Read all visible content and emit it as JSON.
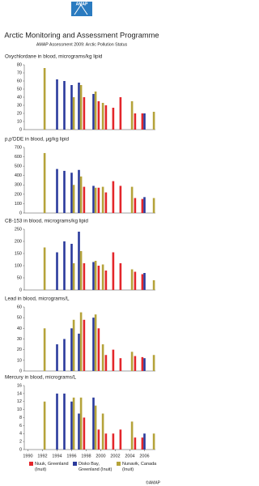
{
  "header": {
    "logo": "AMAP",
    "title": "Arctic Monitoring and Assessment Programme",
    "subtitle": "AMAP Assessment 2009: Arctic Pollution Status"
  },
  "chart_data": [
    {
      "type": "bar",
      "title": "Oxychlordane in blood, micrograms/kg lipid",
      "xlim": [
        1989.5,
        2007.5
      ],
      "ylim": [
        0,
        80
      ],
      "yticks": [
        0,
        10,
        20,
        30,
        40,
        50,
        60,
        70,
        80
      ],
      "series": [
        {
          "name": "Nuuk, Greenland (Inuit)",
          "color": "#e3262b",
          "x": [
            1998,
            2000,
            2001,
            2002,
            2003,
            2005,
            2006
          ],
          "values": [
            40,
            35,
            30,
            27,
            40,
            20,
            20
          ]
        },
        {
          "name": "Disko Bay, Greenland (Inuit)",
          "color": "#2a3a9c",
          "x": [
            1994,
            1995,
            1996,
            1997,
            1999,
            2006
          ],
          "values": [
            62,
            60,
            55,
            58,
            44,
            20
          ]
        },
        {
          "name": "Nunavik, Canada (Inuit)",
          "color": "#b5a33a",
          "x": [
            1992,
            1996,
            1997,
            1999,
            2000,
            2004,
            2007
          ],
          "values": [
            76,
            40,
            55,
            47,
            33,
            35,
            22
          ]
        }
      ]
    },
    {
      "type": "bar",
      "title": "p,p'DDE in blood, µg/kg lipid",
      "xlim": [
        1989.5,
        2007.5
      ],
      "ylim": [
        0,
        700
      ],
      "yticks": [
        0,
        100,
        200,
        300,
        400,
        500,
        600,
        700
      ],
      "series": [
        {
          "name": "Nuuk, Greenland (Inuit)",
          "color": "#e3262b",
          "x": [
            1998,
            2000,
            2001,
            2002,
            2003,
            2005,
            2006
          ],
          "values": [
            280,
            270,
            220,
            340,
            290,
            160,
            150
          ]
        },
        {
          "name": "Disko Bay, Greenland (Inuit)",
          "color": "#2a3a9c",
          "x": [
            1994,
            1995,
            1996,
            1997,
            1999,
            2006
          ],
          "values": [
            470,
            450,
            430,
            460,
            290,
            170
          ]
        },
        {
          "name": "Nunavik, Canada (Inuit)",
          "color": "#b5a33a",
          "x": [
            1992,
            1996,
            1997,
            1999,
            2000,
            2004,
            2007
          ],
          "values": [
            640,
            300,
            390,
            270,
            280,
            280,
            160
          ]
        }
      ]
    },
    {
      "type": "bar",
      "title": "CB-153 in blood, micrograms/kg lipid",
      "xlim": [
        1989.5,
        2007.5
      ],
      "ylim": [
        0,
        250
      ],
      "yticks": [
        0,
        50,
        100,
        150,
        200,
        250
      ],
      "series": [
        {
          "name": "Nuuk, Greenland (Inuit)",
          "color": "#e3262b",
          "x": [
            1998,
            2000,
            2001,
            2002,
            2003,
            2005,
            2006
          ],
          "values": [
            110,
            100,
            80,
            155,
            110,
            75,
            65
          ]
        },
        {
          "name": "Disko Bay, Greenland (Inuit)",
          "color": "#2a3a9c",
          "x": [
            1994,
            1995,
            1996,
            1997,
            1999,
            2006
          ],
          "values": [
            155,
            200,
            190,
            240,
            115,
            70
          ]
        },
        {
          "name": "Nunavik, Canada (Inuit)",
          "color": "#b5a33a",
          "x": [
            1992,
            1996,
            1997,
            1999,
            2000,
            2004,
            2007
          ],
          "values": [
            175,
            110,
            160,
            120,
            105,
            85,
            40
          ]
        }
      ]
    },
    {
      "type": "bar",
      "title": "Lead in blood, micrograms/L",
      "xlim": [
        1989.5,
        2007.5
      ],
      "ylim": [
        0,
        60
      ],
      "yticks": [
        0,
        10,
        20,
        30,
        40,
        50,
        60
      ],
      "series": [
        {
          "name": "Nuuk, Greenland (Inuit)",
          "color": "#e3262b",
          "x": [
            1998,
            2000,
            2001,
            2002,
            2003,
            2005,
            2006
          ],
          "values": [
            48,
            40,
            15,
            20,
            12,
            14,
            13
          ]
        },
        {
          "name": "Disko Bay, Greenland (Inuit)",
          "color": "#2a3a9c",
          "x": [
            1994,
            1995,
            1996,
            1997,
            1999,
            2006
          ],
          "values": [
            25,
            30,
            40,
            35,
            50,
            12
          ]
        },
        {
          "name": "Nunavik, Canada (Inuit)",
          "color": "#b5a33a",
          "x": [
            1992,
            1996,
            1997,
            1999,
            2000,
            2004,
            2007
          ],
          "values": [
            40,
            48,
            55,
            53,
            25,
            18,
            15
          ]
        }
      ]
    },
    {
      "type": "bar",
      "title": "Mercury in blood, micrograms/L",
      "xlim": [
        1989.5,
        2007.5
      ],
      "xticks": [
        1990,
        1992,
        1994,
        1996,
        1998,
        2000,
        2002,
        2004,
        2006
      ],
      "ylim": [
        0,
        16
      ],
      "yticks": [
        0,
        2,
        4,
        6,
        8,
        10,
        12,
        14,
        16
      ],
      "series": [
        {
          "name": "Nuuk, Greenland (Inuit)",
          "color": "#e3262b",
          "x": [
            1998,
            2000,
            2001,
            2002,
            2003,
            2005,
            2006
          ],
          "values": [
            8,
            5,
            4,
            4,
            5,
            3,
            3
          ]
        },
        {
          "name": "Disko Bay, Greenland (Inuit)",
          "color": "#2a3a9c",
          "x": [
            1994,
            1995,
            1996,
            1997,
            1999,
            2006
          ],
          "values": [
            14,
            14,
            12,
            9,
            13,
            4
          ]
        },
        {
          "name": "Nunavik, Canada (Inuit)",
          "color": "#b5a33a",
          "x": [
            1992,
            1996,
            1997,
            1999,
            2000,
            2004,
            2007
          ],
          "values": [
            12,
            13,
            13,
            11,
            9,
            7,
            4
          ]
        }
      ]
    }
  ],
  "credit": "©AMAP"
}
